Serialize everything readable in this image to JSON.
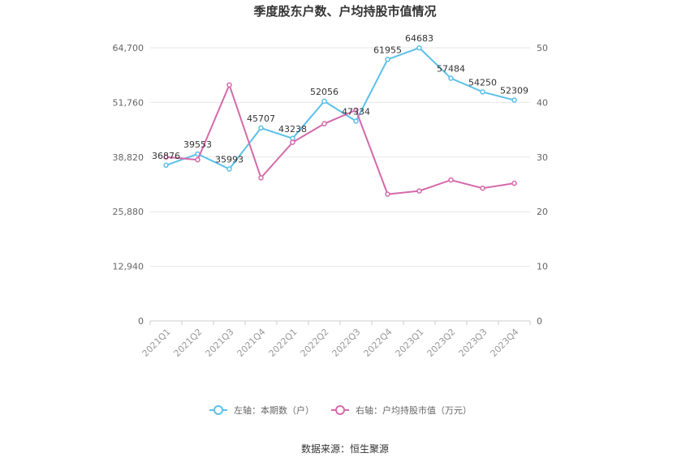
{
  "chart_data": {
    "type": "line",
    "title": "季度股东户数、户均持股市值情况",
    "categories": [
      "2021Q1",
      "2021Q2",
      "2021Q3",
      "2021Q4",
      "2022Q1",
      "2022Q2",
      "2022Q3",
      "2022Q4",
      "2023Q1",
      "2023Q2",
      "2023Q3",
      "2023Q4"
    ],
    "y_left": {
      "ticks": [
        "0",
        "12,940",
        "25,880",
        "38,820",
        "51,760",
        "64,700"
      ],
      "ylim": [
        0,
        64700
      ]
    },
    "y_right": {
      "ticks": [
        "0",
        "10",
        "20",
        "30",
        "40",
        "50"
      ],
      "ylim": [
        0,
        50
      ]
    },
    "series": [
      {
        "name": "左轴：本期数（户）",
        "axis": "left",
        "color": "#5bc0eb",
        "values": [
          36876,
          39553,
          35993,
          45707,
          43238,
          52056,
          47334,
          61955,
          64683,
          57484,
          54250,
          52309
        ],
        "labels": [
          "36876",
          "39553",
          "35993",
          "45707",
          "43238",
          "52056",
          "47334",
          "61955",
          "64683",
          "57484",
          "54250",
          "52309"
        ]
      },
      {
        "name": "右轴：户均持股市值（万元）",
        "axis": "right",
        "color": "#d46aab",
        "values": [
          30.0,
          29.5,
          43.2,
          26.2,
          32.7,
          36.1,
          38.6,
          23.2,
          23.8,
          25.8,
          24.3,
          25.2
        ]
      }
    ],
    "grid": true,
    "legend_position": "bottom"
  },
  "source_text": "数据来源：恒生聚源"
}
